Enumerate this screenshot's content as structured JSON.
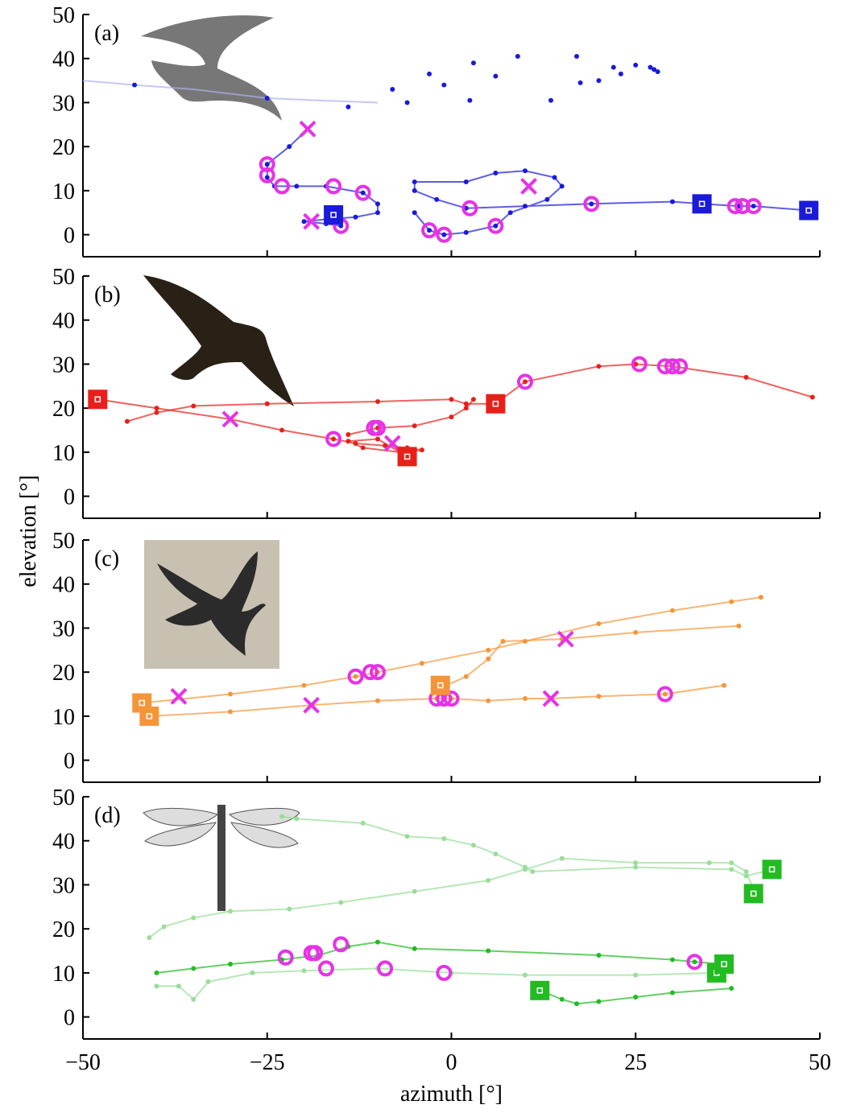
{
  "chart_data": [
    {
      "type": "scatter",
      "panel_label": "(a)",
      "ylabel": "elevation [°]",
      "xlim": [
        -50,
        50
      ],
      "ylim": [
        -5,
        50
      ],
      "yticks": [
        0,
        10,
        20,
        30,
        40,
        50
      ],
      "xticks": [
        -50,
        -25,
        0,
        25,
        50
      ],
      "series": [
        {
          "color": "#aab0f0",
          "marker": "none",
          "line": true,
          "x": [
            -50,
            -43,
            -35,
            -25,
            -18,
            -10
          ],
          "values": [
            35,
            34,
            33,
            31,
            30.5,
            30
          ]
        },
        {
          "color": "#1a1adb",
          "marker": "dot",
          "line": false,
          "x": [
            -43,
            -25,
            -14,
            -8,
            -6,
            -3,
            -1,
            2.5,
            3,
            6,
            9,
            13.5,
            17,
            20,
            17.5,
            22,
            23,
            25,
            27,
            27.5,
            28
          ],
          "values": [
            34,
            31,
            29,
            33,
            30,
            36.5,
            34,
            30.5,
            39,
            36,
            40.5,
            30.5,
            40.5,
            35,
            34.5,
            38,
            36.5,
            38.5,
            38,
            37.5,
            37
          ]
        },
        {
          "color": "#1a1adb",
          "marker": "dot",
          "line": true,
          "x": [
            -19.5,
            -22,
            -25,
            -25,
            -24,
            -21,
            -17,
            -12,
            -10,
            -10,
            -13,
            -17,
            -20,
            -17,
            -15
          ],
          "values": [
            24,
            20,
            16,
            13,
            11,
            11,
            11,
            9.5,
            7,
            5,
            4,
            3.5,
            3,
            2.5,
            2
          ]
        },
        {
          "color": "#1a1adb",
          "marker": "dot",
          "line": true,
          "x": [
            -5,
            -3,
            -1,
            2,
            6,
            8,
            13,
            15,
            14,
            10,
            6,
            2,
            -5,
            -5,
            -2,
            2,
            10,
            19,
            30,
            34,
            39,
            41,
            48.5
          ],
          "values": [
            5,
            1,
            0,
            0.5,
            2,
            5,
            8,
            11,
            13,
            14.5,
            14,
            12,
            12,
            10,
            8,
            6,
            6.5,
            7,
            7.5,
            7,
            6.5,
            6.5,
            5.5
          ]
        },
        {
          "color": "#e632e6",
          "marker": "circle",
          "line": false,
          "x": [
            -25,
            -25,
            -23,
            -16,
            -12,
            -15,
            -3,
            -1,
            2.5,
            6,
            19,
            38.5,
            39.5,
            41
          ],
          "values": [
            16,
            13.5,
            11,
            11,
            9.5,
            2,
            1,
            0,
            6,
            2,
            7,
            6.5,
            6.5,
            6.5
          ]
        },
        {
          "color": "#e632e6",
          "marker": "cross",
          "line": false,
          "x": [
            -19.5,
            -19,
            10.5
          ],
          "values": [
            24,
            3,
            11
          ]
        },
        {
          "color": "#1a1adb",
          "marker": "square",
          "line": false,
          "x": [
            -16,
            34,
            48.5
          ],
          "values": [
            4.5,
            7,
            5.5
          ]
        }
      ]
    },
    {
      "type": "scatter",
      "panel_label": "(b)",
      "xlim": [
        -50,
        50
      ],
      "ylim": [
        -5,
        50
      ],
      "yticks": [
        0,
        10,
        20,
        30,
        40,
        50
      ],
      "xticks": [
        -50,
        -25,
        0,
        25,
        50
      ],
      "series": [
        {
          "color": "#e8201a",
          "marker": "dot",
          "line": true,
          "x": [
            -48,
            -40,
            -30,
            -23,
            -16,
            -13,
            -9,
            -6,
            -4,
            -7,
            -12,
            -14,
            -10,
            -6
          ],
          "values": [
            22,
            20,
            17.5,
            15,
            13,
            12,
            11.5,
            11,
            10.5,
            10,
            11,
            12.5,
            13,
            9
          ]
        },
        {
          "color": "#e8201a",
          "marker": "dot",
          "line": true,
          "x": [
            -44,
            -40,
            -35,
            -25,
            -10,
            0,
            2,
            6,
            10,
            20,
            25,
            30,
            40,
            49
          ],
          "values": [
            17,
            19,
            20.5,
            21,
            21.5,
            22,
            21,
            21,
            26,
            29.5,
            30,
            29.5,
            27,
            22.5
          ]
        },
        {
          "color": "#e8201a",
          "marker": "dot",
          "line": true,
          "x": [
            -14,
            -10,
            -5,
            0,
            2,
            3
          ],
          "values": [
            14,
            15.5,
            16,
            18,
            20,
            22
          ]
        },
        {
          "color": "#e632e6",
          "marker": "circle",
          "line": false,
          "x": [
            -16,
            -10.5,
            -10,
            -6,
            10,
            25.5,
            29,
            30,
            31
          ],
          "values": [
            13,
            15.5,
            15.5,
            9,
            26,
            30,
            29.5,
            29.5,
            29.5
          ]
        },
        {
          "color": "#e632e6",
          "marker": "cross",
          "line": false,
          "x": [
            -30,
            -8
          ],
          "values": [
            17.5,
            12
          ]
        },
        {
          "color": "#e8201a",
          "marker": "square",
          "line": false,
          "x": [
            -48,
            -6,
            6
          ],
          "values": [
            22,
            9,
            21
          ]
        }
      ]
    },
    {
      "type": "scatter",
      "panel_label": "(c)",
      "xlim": [
        -50,
        50
      ],
      "ylim": [
        -5,
        50
      ],
      "yticks": [
        0,
        10,
        20,
        30,
        40,
        50
      ],
      "xticks": [
        -50,
        -25,
        0,
        25,
        50
      ],
      "series": [
        {
          "color": "#f5953a",
          "marker": "dot",
          "line": true,
          "x": [
            -42,
            -30,
            -20,
            -13,
            -10,
            -4,
            5,
            10,
            20,
            30,
            38,
            42
          ],
          "values": [
            13,
            15,
            17,
            19,
            20,
            22,
            25,
            27,
            31,
            34,
            36,
            37
          ]
        },
        {
          "color": "#f5953a",
          "marker": "dot",
          "line": true,
          "x": [
            -41,
            -30,
            -19,
            -10,
            -2,
            0,
            5,
            10,
            13.5,
            20,
            29,
            37
          ],
          "values": [
            10,
            11,
            12.5,
            13.5,
            14,
            14,
            13.5,
            14,
            14,
            14.5,
            15,
            17
          ]
        },
        {
          "color": "#f5953a",
          "marker": "dot",
          "line": true,
          "x": [
            -2,
            2,
            5,
            7,
            15,
            25,
            39
          ],
          "values": [
            16,
            19,
            23,
            27,
            27.5,
            29,
            30.5
          ]
        },
        {
          "color": "#e632e6",
          "marker": "circle",
          "line": false,
          "x": [
            -13,
            -11,
            -10,
            -2,
            -1,
            0,
            29
          ],
          "values": [
            19,
            20,
            20,
            14,
            14,
            14,
            15
          ]
        },
        {
          "color": "#e632e6",
          "marker": "cross",
          "line": false,
          "x": [
            -37,
            -19,
            13.5,
            15.5
          ],
          "values": [
            14.5,
            12.5,
            14,
            27.5
          ]
        },
        {
          "color": "#f5953a",
          "marker": "square",
          "line": false,
          "x": [
            -42,
            -41,
            -1.5
          ],
          "values": [
            13,
            10,
            17
          ]
        }
      ]
    },
    {
      "type": "scatter",
      "panel_label": "(d)",
      "xlabel": "azimuth [°]",
      "xlim": [
        -50,
        50
      ],
      "ylim": [
        -5,
        50
      ],
      "yticks": [
        0,
        10,
        20,
        30,
        40,
        50
      ],
      "xticks": [
        {
          "value": -50,
          "label": "−50"
        },
        {
          "value": -25,
          "label": "−25"
        },
        0,
        25,
        50
      ],
      "series": [
        {
          "color": "#99dd99",
          "marker": "dot",
          "line": true,
          "x": [
            -41,
            -39,
            -35,
            -30,
            -22,
            -15,
            -5,
            5,
            10,
            15,
            25,
            35,
            38,
            40,
            41,
            41.5
          ],
          "values": [
            18,
            20.5,
            22.5,
            24,
            24.5,
            26,
            28.5,
            31,
            33.5,
            36,
            35,
            35,
            35,
            33,
            29,
            28
          ]
        },
        {
          "color": "#99dd99",
          "marker": "dot",
          "line": true,
          "x": [
            -23,
            -21,
            -12,
            -6,
            -1,
            3,
            6,
            10,
            11,
            25,
            38,
            40,
            43.5
          ],
          "values": [
            45.5,
            45,
            44,
            41,
            40.5,
            39,
            37,
            34,
            33,
            34,
            33.5,
            32,
            33.5
          ]
        },
        {
          "color": "#22bb22",
          "marker": "dot",
          "line": true,
          "x": [
            -40,
            -35,
            -30,
            -23,
            -18,
            -14,
            -10,
            -5,
            5,
            20,
            30,
            33,
            37
          ],
          "values": [
            10,
            11,
            12,
            13,
            14,
            16,
            17,
            15.5,
            15,
            14,
            13,
            12.5,
            12
          ]
        },
        {
          "color": "#99dd99",
          "marker": "dot",
          "line": true,
          "x": [
            -40,
            -37,
            -35,
            -33,
            -27,
            -20,
            -10,
            0,
            10,
            25,
            36,
            37
          ],
          "values": [
            7,
            7,
            4,
            8,
            10,
            10.5,
            11,
            10,
            9.5,
            9.5,
            10,
            10.5
          ]
        },
        {
          "color": "#22bb22",
          "marker": "dot",
          "line": true,
          "x": [
            12,
            15,
            17,
            20,
            25,
            30,
            38
          ],
          "values": [
            6,
            4,
            3,
            3.5,
            4.5,
            5.5,
            6.5
          ]
        },
        {
          "color": "#e632e6",
          "marker": "circle",
          "line": false,
          "x": [
            -22.5,
            -19,
            -18.5,
            -17,
            -15,
            -9,
            -1,
            33
          ],
          "values": [
            13.5,
            14.5,
            14.5,
            11,
            16.5,
            11,
            10,
            12.5
          ]
        },
        {
          "color": "#22bb22",
          "marker": "square",
          "line": false,
          "x": [
            12,
            36,
            37,
            41,
            43.5
          ],
          "values": [
            6,
            10,
            12,
            28,
            33.5
          ]
        }
      ]
    }
  ]
}
